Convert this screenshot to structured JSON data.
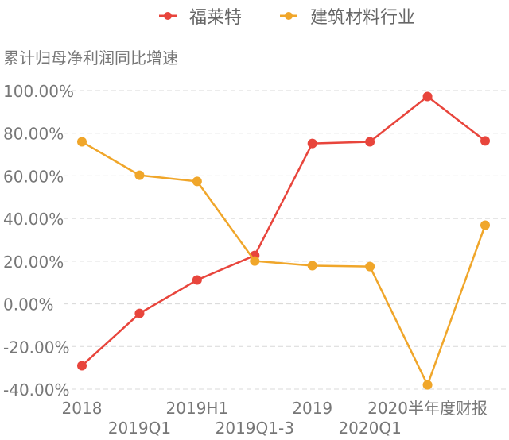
{
  "chart_data": {
    "type": "line",
    "ylabel": "累计归母净利润同比增速",
    "categories": [
      "2018",
      "2019Q1",
      "2019H1",
      "2019Q1-3",
      "2019",
      "2020Q1",
      "2020半年度财报",
      ""
    ],
    "y_ticks": [
      "100.00%",
      "80.00%",
      "60.00%",
      "40.00%",
      "20.00%",
      "0.00%",
      "-20.00%",
      "-40.00%"
    ],
    "ylim": [
      -40,
      100
    ],
    "grid": true,
    "legend_placement": "top-center",
    "series": [
      {
        "name": "福莱特",
        "color": "#e8453c",
        "values": [
          -29.0,
          -4.5,
          11.2,
          22.7,
          75.2,
          76.0,
          97.2,
          76.4
        ]
      },
      {
        "name": "建筑材料行业",
        "color": "#f0a62a",
        "values": [
          76.0,
          60.3,
          57.4,
          20.1,
          17.9,
          17.5,
          -38.0,
          36.9
        ]
      }
    ]
  }
}
